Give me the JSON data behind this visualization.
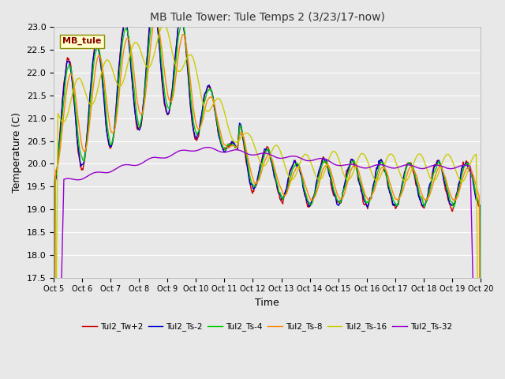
{
  "title": "MB Tule Tower: Tule Temps 2 (3/23/17-now)",
  "xlabel": "Time",
  "ylabel": "Temperature (C)",
  "ylim": [
    17.5,
    23.0
  ],
  "yticks": [
    17.5,
    18.0,
    18.5,
    19.0,
    19.5,
    20.0,
    20.5,
    21.0,
    21.5,
    22.0,
    22.5,
    23.0
  ],
  "xtick_labels": [
    "Oct 5",
    "Oct 6",
    "Oct 7",
    "Oct 8",
    "Oct 9",
    "Oct 10",
    "Oct 11",
    "Oct 12",
    "Oct 13",
    "Oct 14",
    "Oct 15",
    "Oct 16",
    "Oct 17",
    "Oct 18",
    "Oct 19",
    "Oct 20"
  ],
  "series_labels": [
    "Tul2_Tw+2",
    "Tul2_Ts-2",
    "Tul2_Ts-4",
    "Tul2_Ts-8",
    "Tul2_Ts-16",
    "Tul2_Ts-32"
  ],
  "series_colors": [
    "#cc0000",
    "#0000cc",
    "#00cc00",
    "#ff8800",
    "#cccc00",
    "#9900cc"
  ],
  "line_width": 1.0,
  "fig_facecolor": "#e8e8e8",
  "plot_bg_color": "#e8e8e8",
  "grid_color": "#ffffff",
  "annotation_text": "MB_tule",
  "annotation_bg": "#ffffcc",
  "annotation_border": "#888800",
  "figsize": [
    6.4,
    4.8
  ],
  "dpi": 100
}
